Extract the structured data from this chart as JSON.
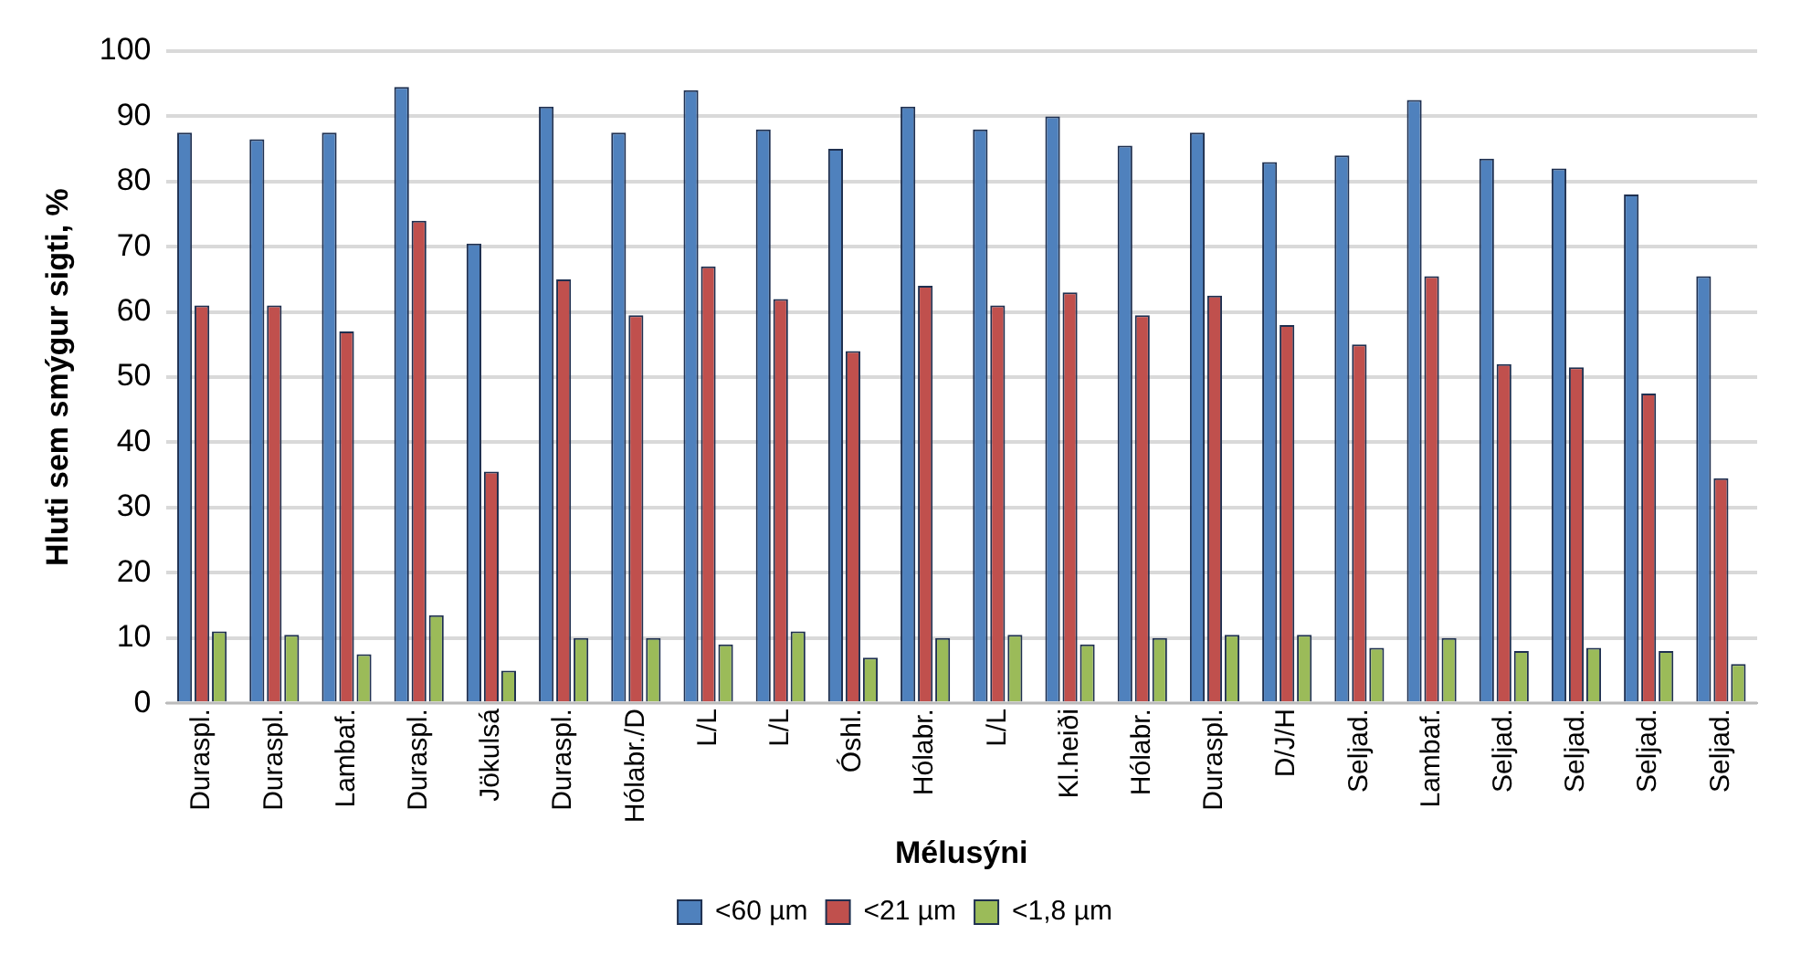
{
  "chart_data": {
    "type": "bar",
    "xlabel": "Mélusýni",
    "ylabel": "Hluti sem smýgur sigti, %",
    "categories": [
      "Duraspl.",
      "Duraspl.",
      "Lambaf.",
      "Duraspl.",
      "Jökulsá",
      "Duraspl.",
      "Hólabr./D",
      "L/L",
      "L/L",
      "Óshl.",
      "Hólabr.",
      "L/L",
      "Kl.heiði",
      "Hólabr.",
      "Duraspl.",
      "D/J/H",
      "Seljad.",
      "Lambaf.",
      "Seljad.",
      "Seljad.",
      "Seljad.",
      "Seljad."
    ],
    "series": [
      {
        "name": "<60 µm",
        "color": "#4f81bd",
        "values": [
          87.5,
          86.5,
          87.5,
          94.5,
          70.5,
          91.5,
          87.5,
          94,
          88,
          85,
          91.5,
          88,
          90,
          85.5,
          87.5,
          83,
          84,
          92.5,
          83.5,
          82,
          78,
          65.5
        ]
      },
      {
        "name": "<21 µm",
        "color": "#c0504d",
        "values": [
          61,
          61,
          57,
          74,
          35.5,
          65,
          59.5,
          67,
          62,
          54,
          64,
          61,
          63,
          59.5,
          62.5,
          58,
          55,
          65.5,
          52,
          51.5,
          47.5,
          34.5
        ]
      },
      {
        "name": "<1,8 µm",
        "color": "#9bbb59",
        "values": [
          11,
          10.5,
          7.5,
          13.5,
          5,
          10,
          10,
          9,
          11,
          7,
          10,
          10.5,
          9,
          10,
          10.5,
          10.5,
          8.5,
          10,
          8,
          8.5,
          8,
          6
        ]
      }
    ],
    "ylim": [
      0,
      100
    ],
    "yticks": [
      0,
      10,
      20,
      30,
      40,
      50,
      60,
      70,
      80,
      90,
      100
    ],
    "grid": "y",
    "legend": "bottom"
  }
}
